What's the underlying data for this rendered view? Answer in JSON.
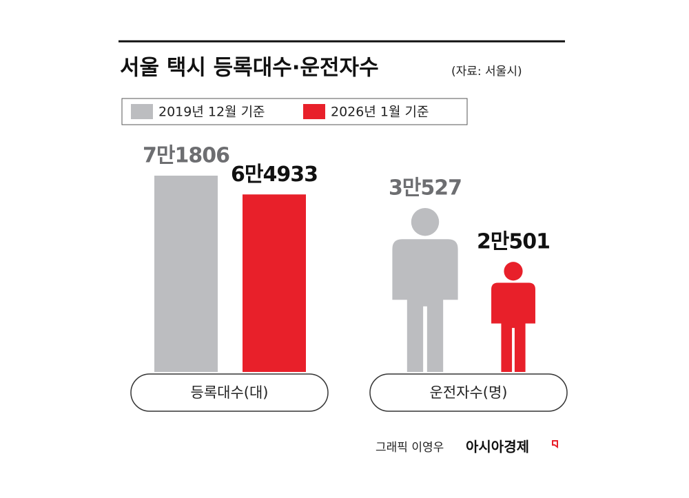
{
  "chart_data": {
    "type": "bar",
    "title": "서울 택시 등록대수·운전자수",
    "subtitle": "(자료: 서울시)",
    "categories": [
      "등록대수(대)",
      "운전자수(명)"
    ],
    "shapes": [
      "bar",
      "person"
    ],
    "series": [
      {
        "name": "2019년 12월 기준",
        "color": "#bcbdc0",
        "label_color": "#6d6e71",
        "values": [
          71806,
          30527
        ],
        "value_labels": [
          "7만1806",
          "3만527"
        ]
      },
      {
        "name": "2026년 1월 기준",
        "color": "#e8202a",
        "label_color": "#111111",
        "values": [
          64933,
          20501
        ],
        "value_labels": [
          "6만4933",
          "2만501"
        ]
      }
    ]
  },
  "footer": {
    "credit": "그래픽 이영우",
    "brand": "아시아경제"
  }
}
